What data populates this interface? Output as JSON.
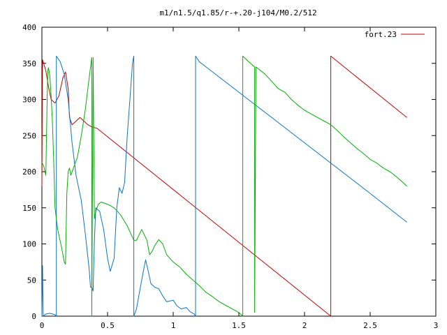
{
  "chart_data": {
    "type": "line",
    "title": "m1/n1.5/q1.85/r-+.20-j104/M0.2/512",
    "xlabel": "",
    "ylabel": "",
    "xlim": [
      0,
      3
    ],
    "ylim": [
      0,
      400
    ],
    "x_ticks": [
      "0",
      "0.5",
      "1",
      "1.5",
      "2",
      "2.5",
      "3"
    ],
    "y_ticks": [
      "0",
      "50",
      "100",
      "150",
      "200",
      "250",
      "300",
      "350",
      "400"
    ],
    "grid": false,
    "legend_position": "top-right",
    "series": [
      {
        "name": "fort.23",
        "color": "#c00000",
        "points": [
          [
            0.0,
            180
          ],
          [
            0.005,
            355
          ],
          [
            0.03,
            340
          ],
          [
            0.05,
            318
          ],
          [
            0.07,
            300
          ],
          [
            0.1,
            295
          ],
          [
            0.13,
            305
          ],
          [
            0.16,
            330
          ],
          [
            0.18,
            338
          ],
          [
            0.2,
            315
          ],
          [
            0.21,
            275
          ],
          [
            0.23,
            265
          ],
          [
            0.26,
            270
          ],
          [
            0.29,
            275
          ],
          [
            0.32,
            270
          ],
          [
            0.35,
            265
          ],
          [
            0.38,
            262
          ],
          [
            0.42,
            260
          ],
          [
            2.2,
            0
          ],
          [
            2.2,
            360
          ],
          [
            2.78,
            275
          ]
        ]
      },
      {
        "name": "",
        "color": "#0a74c8",
        "points": [
          [
            0.0,
            0
          ],
          [
            0.005,
            70
          ],
          [
            0.01,
            0
          ],
          [
            0.03,
            3
          ],
          [
            0.06,
            4
          ],
          [
            0.1,
            2
          ],
          [
            0.11,
            0
          ],
          [
            0.11,
            360
          ],
          [
            0.14,
            352
          ],
          [
            0.17,
            335
          ],
          [
            0.2,
            300
          ],
          [
            0.23,
            240
          ],
          [
            0.26,
            195
          ],
          [
            0.3,
            160
          ],
          [
            0.33,
            115
          ],
          [
            0.36,
            65
          ],
          [
            0.37,
            40
          ],
          [
            0.38,
            40
          ],
          [
            0.39,
            35
          ],
          [
            0.4,
            105
          ],
          [
            0.41,
            150
          ],
          [
            0.44,
            145
          ],
          [
            0.47,
            120
          ],
          [
            0.5,
            80
          ],
          [
            0.52,
            62
          ],
          [
            0.55,
            80
          ],
          [
            0.57,
            150
          ],
          [
            0.59,
            178
          ],
          [
            0.61,
            170
          ],
          [
            0.63,
            185
          ],
          [
            0.65,
            250
          ],
          [
            0.67,
            300
          ],
          [
            0.69,
            350
          ],
          [
            0.7,
            360
          ],
          [
            0.7,
            0
          ],
          [
            0.72,
            10
          ],
          [
            0.74,
            30
          ],
          [
            0.77,
            60
          ],
          [
            0.79,
            78
          ],
          [
            0.81,
            62
          ],
          [
            0.83,
            45
          ],
          [
            0.86,
            40
          ],
          [
            0.89,
            38
          ],
          [
            0.92,
            28
          ],
          [
            0.95,
            20
          ],
          [
            1.0,
            22
          ],
          [
            1.03,
            14
          ],
          [
            1.06,
            10
          ],
          [
            1.1,
            12
          ],
          [
            1.13,
            6
          ],
          [
            1.16,
            3
          ],
          [
            1.17,
            0
          ],
          [
            1.17,
            360
          ],
          [
            1.2,
            352
          ],
          [
            1.25,
            345
          ],
          [
            1.5,
            310
          ],
          [
            2.0,
            240
          ],
          [
            2.5,
            170
          ],
          [
            2.78,
            130
          ]
        ]
      },
      {
        "name": "",
        "color": "#00b000",
        "points": [
          [
            0.0,
            213
          ],
          [
            0.015,
            207
          ],
          [
            0.03,
            195
          ],
          [
            0.04,
            300
          ],
          [
            0.045,
            340
          ],
          [
            0.05,
            344
          ],
          [
            0.06,
            333
          ],
          [
            0.07,
            305
          ],
          [
            0.08,
            270
          ],
          [
            0.09,
            215
          ],
          [
            0.1,
            150
          ],
          [
            0.12,
            120
          ],
          [
            0.15,
            95
          ],
          [
            0.17,
            75
          ],
          [
            0.18,
            72
          ],
          [
            0.19,
            170
          ],
          [
            0.2,
            200
          ],
          [
            0.21,
            205
          ],
          [
            0.22,
            195
          ],
          [
            0.24,
            205
          ],
          [
            0.27,
            220
          ],
          [
            0.3,
            250
          ],
          [
            0.33,
            285
          ],
          [
            0.36,
            330
          ],
          [
            0.38,
            358
          ],
          [
            0.38,
            0
          ],
          [
            0.39,
            358
          ],
          [
            0.4,
            135
          ],
          [
            0.41,
            145
          ],
          [
            0.43,
            155
          ],
          [
            0.45,
            158
          ],
          [
            0.5,
            155
          ],
          [
            0.55,
            150
          ],
          [
            0.6,
            140
          ],
          [
            0.65,
            125
          ],
          [
            0.7,
            105
          ],
          [
            0.72,
            105
          ],
          [
            0.76,
            120
          ],
          [
            0.8,
            105
          ],
          [
            0.82,
            85
          ],
          [
            0.84,
            90
          ],
          [
            0.86,
            98
          ],
          [
            0.89,
            106
          ],
          [
            0.92,
            100
          ],
          [
            0.95,
            85
          ],
          [
            1.0,
            75
          ],
          [
            1.05,
            68
          ],
          [
            1.1,
            58
          ],
          [
            1.15,
            50
          ],
          [
            1.2,
            42
          ],
          [
            1.25,
            33
          ],
          [
            1.3,
            27
          ],
          [
            1.35,
            20
          ],
          [
            1.4,
            15
          ],
          [
            1.45,
            10
          ],
          [
            1.5,
            5
          ],
          [
            1.53,
            0
          ],
          [
            1.53,
            360
          ],
          [
            1.57,
            353
          ],
          [
            1.62,
            345
          ],
          [
            1.62,
            5
          ],
          [
            1.63,
            345
          ],
          [
            1.7,
            335
          ],
          [
            1.75,
            325
          ],
          [
            1.8,
            315
          ],
          [
            1.85,
            310
          ],
          [
            1.9,
            300
          ],
          [
            1.95,
            292
          ],
          [
            2.0,
            285
          ],
          [
            2.05,
            280
          ],
          [
            2.1,
            275
          ],
          [
            2.15,
            270
          ],
          [
            2.2,
            265
          ],
          [
            2.25,
            257
          ],
          [
            2.3,
            248
          ],
          [
            2.35,
            240
          ],
          [
            2.4,
            232
          ],
          [
            2.45,
            225
          ],
          [
            2.5,
            217
          ],
          [
            2.55,
            212
          ],
          [
            2.6,
            205
          ],
          [
            2.65,
            200
          ],
          [
            2.7,
            193
          ],
          [
            2.75,
            185
          ],
          [
            2.78,
            180
          ]
        ]
      }
    ]
  }
}
